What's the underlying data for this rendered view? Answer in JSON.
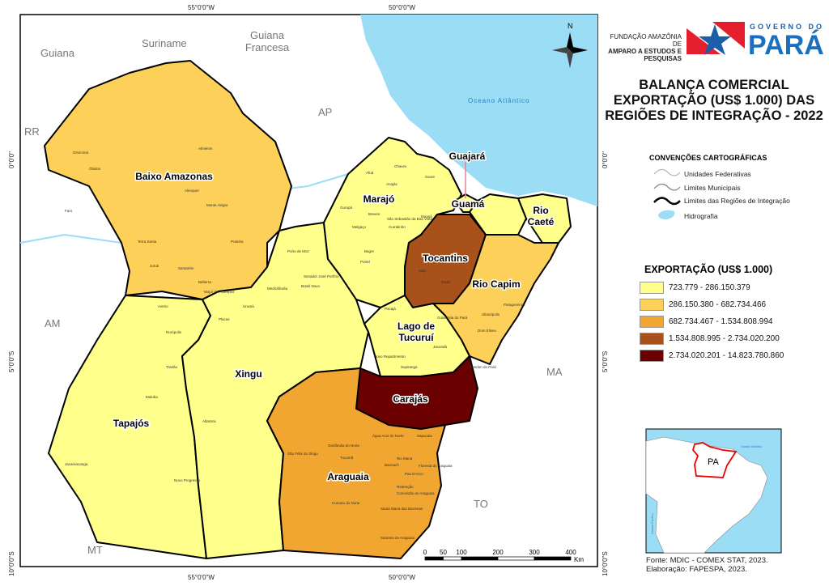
{
  "title": "BALANÇA COMERCIAL EXPORTAÇÃO (US$ 1.000) DAS REGIÕES DE INTEGRAÇÃO - 2022",
  "title_lines": [
    "BALANÇA COMERCIAL",
    "EXPORTAÇÃO (US$ 1.000) DAS",
    "REGIÕES DE INTEGRAÇÃO - 2022"
  ],
  "logos": {
    "fapespa": [
      "FUNDAÇÃO AMAZÔNIA DE",
      "AMPARO A ESTUDOS E",
      "PESQUISAS"
    ],
    "governo_top": "GOVERNO DO",
    "governo_main": "PARÁ"
  },
  "conventions": {
    "title": "CONVENÇÕES CARTOGRÁFICAS",
    "items": [
      "Unidades Federativas",
      "Limites Municipais",
      "Limites das Regiões de Integração",
      "Hidrografia"
    ]
  },
  "legend": {
    "title": "EXPORTAÇÃO (US$ 1.000)",
    "classes": [
      {
        "label": "723.779 - 286.150.379",
        "color": "#ffff8c"
      },
      {
        "label": "286.150.380 - 682.734.466",
        "color": "#fdd05a"
      },
      {
        "label": "682.734.467 - 1.534.808.994",
        "color": "#f0a630"
      },
      {
        "label": "1.534.808.995 - 2.734.020.200",
        "color": "#a8511a"
      },
      {
        "label": "2.734.020.201 - 14.823.780.860",
        "color": "#6b0000"
      }
    ]
  },
  "regions": [
    {
      "name": "Baixo Amazonas",
      "class": 1
    },
    {
      "name": "Tapajós",
      "class": 0
    },
    {
      "name": "Xingu",
      "class": 0
    },
    {
      "name": "Marajó",
      "class": 0
    },
    {
      "name": "Tocantins",
      "class": 3
    },
    {
      "name": "Guajará",
      "class": 0
    },
    {
      "name": "Guamá",
      "class": 0
    },
    {
      "name": "Rio Caeté",
      "class": 0
    },
    {
      "name": "Rio Capim",
      "class": 1
    },
    {
      "name": "Lago de Tucuruí",
      "class": 0
    },
    {
      "name": "Carajás",
      "class": 4
    },
    {
      "name": "Araguaia",
      "class": 2
    }
  ],
  "neighbors": [
    "Guiana",
    "Suriname",
    "Guiana Francesa",
    "AP",
    "RR",
    "AM",
    "MA",
    "MT",
    "TO"
  ],
  "ocean": "Oceano Atlântico",
  "coords": {
    "lon": [
      "55°0'0\"W",
      "50°0'0\"W"
    ],
    "lat": [
      "0°0'0\"",
      "5°0'0\"S",
      "10°0'0\"S"
    ]
  },
  "north": "N",
  "scale": {
    "ticks": [
      "0",
      "50",
      "100",
      "200",
      "300",
      "400"
    ],
    "unit": "Km"
  },
  "inset": {
    "label": "PA",
    "ocean_atl": "Oceano Atlântico",
    "ocean_pac": "Oceano Pacífico"
  },
  "municipalities": [
    "Oriximiná",
    "Óbidos",
    "Almeirim",
    "Alenquer",
    "Monte Alegre",
    "Faro",
    "Terra Santa",
    "Juruti",
    "Santarém",
    "Prainha",
    "Belterra",
    "Mojuí dos Campos",
    "Porto de Moz",
    "Senador José Porfírio",
    "Medicilândia",
    "Brasil Novo",
    "Uruará",
    "Placas",
    "Aveiro",
    "Rurópolis",
    "Trairão",
    "Itaituba",
    "Jacareacanga",
    "Novo Progresso",
    "Altamira",
    "São Félix do Xingu",
    "Tucumã",
    "Ourilândia do Norte",
    "Água Azul do Norte",
    "Sapucaia",
    "Rio Maria",
    "Bannach",
    "Floresta do Araguaia",
    "Pau D'Arco",
    "Redenção",
    "Conceição do Araguaia",
    "Cumaru do Norte",
    "Santa Maria das Barreiras",
    "Santana do Araguaia",
    "Pacajá",
    "Novo Repartimento",
    "Jacundá",
    "Rondon do Pará",
    "Dom Eliseu",
    "Ulianópolis",
    "Paragominas",
    "Breves",
    "Portel",
    "Melgaço",
    "Bagre",
    "Gurupá",
    "Afuá",
    "Chaves",
    "Anajás",
    "Curralinho",
    "São Sebastião da Boa Vista",
    "Muaná",
    "Soure",
    "Goianésia do Pará",
    "Supiranga",
    "Moju",
    "Baião"
  ],
  "source": "Fonte: MDIC - COMEX STAT, 2023.",
  "credit": "Elaboração: FAPESPA, 2023."
}
